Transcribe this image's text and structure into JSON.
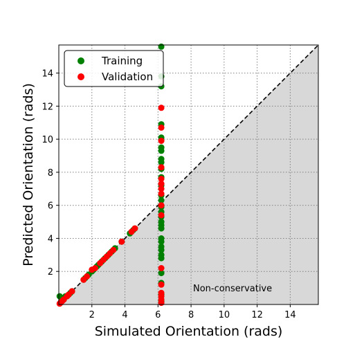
{
  "chart_data": {
    "type": "scatter",
    "title": "",
    "xlabel": "Simulated Orientation (rads)",
    "ylabel": "Predicted Orientation (rads)",
    "xlim": [
      0,
      15.7
    ],
    "ylim": [
      0,
      15.7
    ],
    "xticks": [
      2,
      4,
      6,
      8,
      10,
      12,
      14
    ],
    "yticks": [
      2,
      4,
      6,
      8,
      10,
      12,
      14
    ],
    "xtick_labels": [
      "2",
      "4",
      "6",
      "8",
      "10",
      "12",
      "14"
    ],
    "ytick_labels": [
      "2",
      "4",
      "6",
      "8",
      "10",
      "12",
      "14"
    ],
    "grid": true,
    "legend_position": "top-left",
    "annotation": "Non-conservative",
    "reference_line": {
      "label": "y = x",
      "style": "dashed",
      "color": "#000000"
    },
    "shaded_region": {
      "description": "below y = x",
      "color": "#d8d8d8"
    },
    "colors": {
      "Training": "#008000",
      "Validation": "#ff0000"
    },
    "series": [
      {
        "name": "Training",
        "x": [
          0.05,
          0.1,
          0.15,
          0.3,
          0.4,
          0.5,
          0.6,
          0.7,
          0.8,
          1.5,
          1.6,
          1.8,
          2.0,
          2.1,
          2.3,
          2.4,
          2.6,
          2.8,
          3.0,
          3.2,
          3.4,
          3.8,
          4.3,
          4.5,
          4.6,
          6.2,
          6.2,
          6.2,
          6.2,
          6.2,
          6.2,
          6.2,
          6.2,
          6.2,
          6.2,
          6.2,
          6.2,
          6.2,
          6.2,
          6.2,
          6.2,
          6.2,
          6.2,
          6.2,
          6.2,
          6.2,
          6.2,
          6.2,
          6.2,
          6.2,
          6.2,
          6.2,
          6.2,
          6.2,
          6.2
        ],
        "y": [
          0.5,
          0.1,
          0.2,
          0.3,
          0.5,
          0.5,
          0.6,
          0.7,
          0.8,
          1.5,
          1.6,
          1.8,
          2.0,
          2.1,
          2.3,
          2.4,
          2.6,
          2.8,
          3.0,
          3.2,
          3.4,
          3.8,
          4.3,
          4.5,
          4.6,
          15.6,
          13.8,
          13.2,
          10.9,
          10.1,
          9.5,
          9.3,
          8.8,
          8.6,
          8.2,
          7.7,
          7.2,
          6.6,
          6.3,
          5.9,
          5.6,
          5.3,
          5.0,
          4.8,
          4.6,
          4.0,
          3.8,
          3.5,
          3.3,
          3.0,
          2.8,
          1.9,
          1.3,
          0.6,
          0.2
        ]
      },
      {
        "name": "Validation",
        "x": [
          0.05,
          0.1,
          0.2,
          0.3,
          0.5,
          0.6,
          0.8,
          1.5,
          1.7,
          2.0,
          2.2,
          2.5,
          2.7,
          2.9,
          3.1,
          3.3,
          3.8,
          4.4,
          4.6,
          6.2,
          6.2,
          6.2,
          6.2,
          6.2,
          6.2,
          6.2,
          6.2,
          6.2,
          6.2,
          6.2,
          6.2,
          6.2,
          6.2,
          6.2,
          6.2
        ],
        "y": [
          0.05,
          0.1,
          0.2,
          0.3,
          0.5,
          0.6,
          0.8,
          1.5,
          1.7,
          2.1,
          2.2,
          2.5,
          2.7,
          2.9,
          3.1,
          3.3,
          3.8,
          4.4,
          4.6,
          11.9,
          10.7,
          9.9,
          8.3,
          7.6,
          7.3,
          7.0,
          6.7,
          6.0,
          5.4,
          2.2,
          1.2,
          0.7,
          0.5,
          0.3,
          0.1
        ]
      }
    ]
  }
}
